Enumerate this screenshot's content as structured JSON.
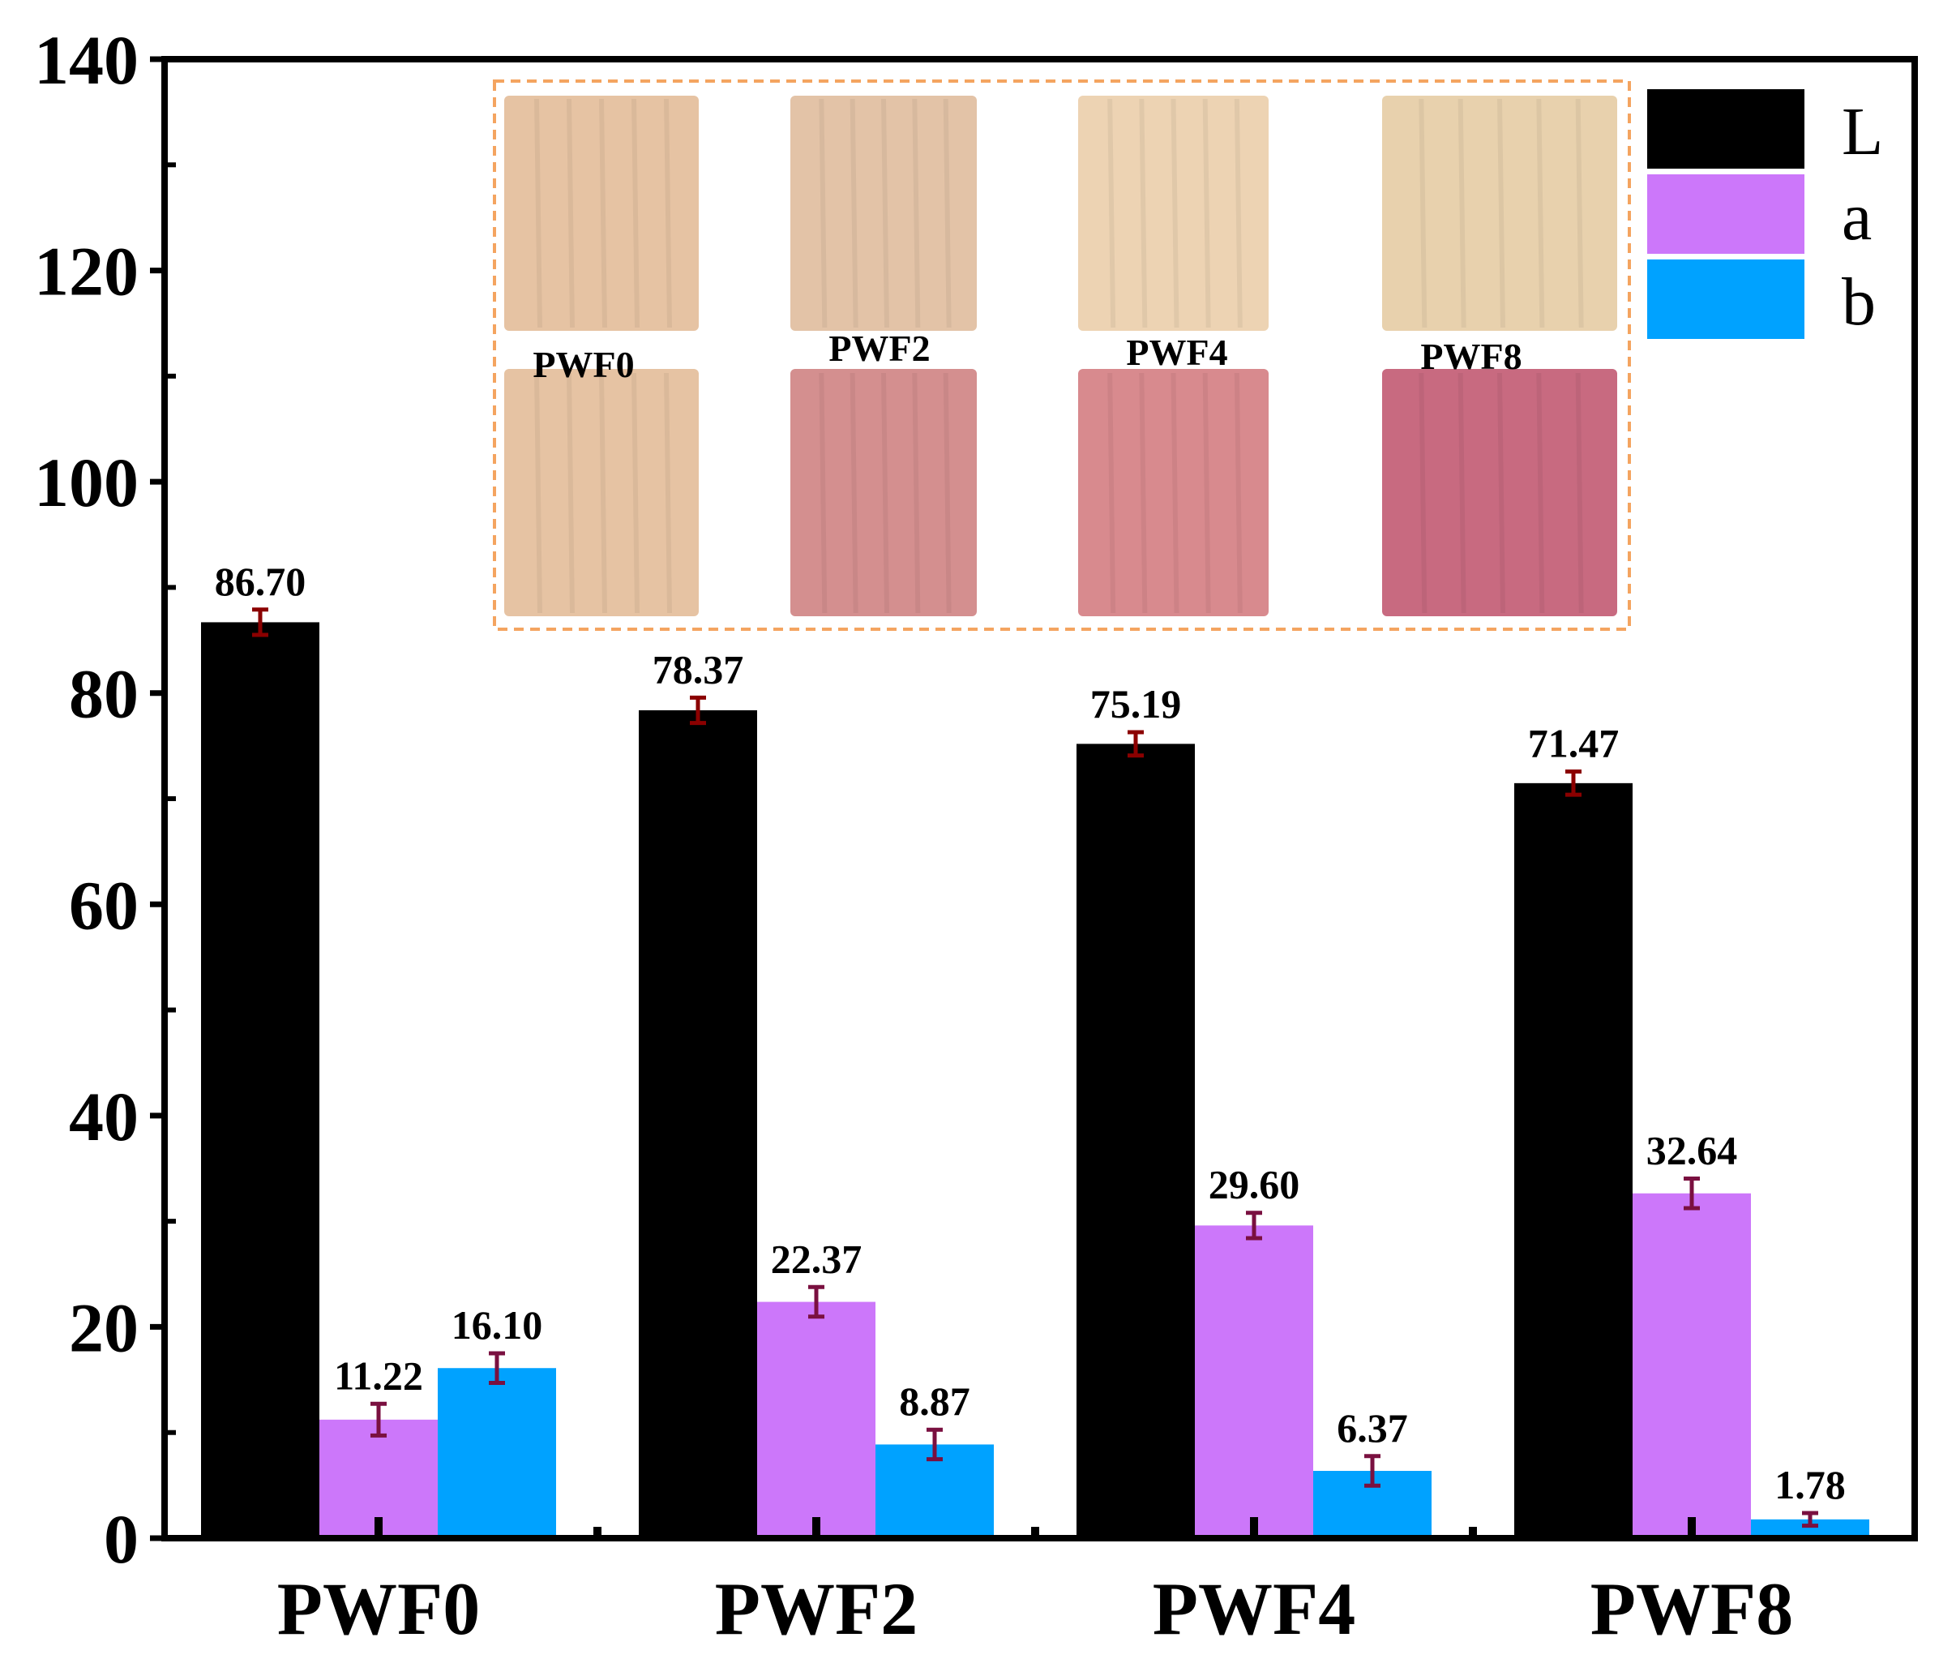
{
  "chart_data": {
    "type": "bar",
    "title": "",
    "xlabel": "",
    "ylabel": "",
    "ylim": [
      0,
      140
    ],
    "yticks": [
      0,
      20,
      40,
      60,
      80,
      100,
      120,
      140
    ],
    "ytick_labels": [
      "0",
      "20",
      "40",
      "60",
      "80",
      "100",
      "120",
      "140"
    ],
    "categories": [
      "PWF0",
      "PWF2",
      "PWF4",
      "PWF8"
    ],
    "series": [
      {
        "name": "L",
        "color": "#000000",
        "values": [
          86.7,
          78.37,
          75.19,
          71.47
        ],
        "labels": [
          "86.70",
          "78.37",
          "75.19",
          "71.47"
        ],
        "errors": [
          1.2,
          1.2,
          1.1,
          1.1
        ]
      },
      {
        "name": "a",
        "color": "#cc77fa",
        "values": [
          11.22,
          22.37,
          29.6,
          32.64
        ],
        "labels": [
          "11.22",
          "22.37",
          "29.60",
          "32.64"
        ],
        "errors": [
          1.5,
          1.4,
          1.2,
          1.4
        ]
      },
      {
        "name": "b",
        "color": "#00a2ff",
        "values": [
          16.1,
          8.87,
          6.37,
          1.78
        ],
        "labels": [
          "16.10",
          "8.87",
          "6.37",
          "1.78"
        ],
        "errors": [
          1.4,
          1.4,
          1.4,
          0.6
        ]
      }
    ],
    "error_bar_colors": [
      "#8b0000",
      "#7a1040",
      "#7a1040"
    ],
    "legend": {
      "position": "top-right",
      "entries": [
        "L",
        "a",
        "b"
      ]
    },
    "inset": {
      "description_labels": [
        "PWF0",
        "PWF2",
        "PWF4",
        "PWF8"
      ],
      "border_color": "#f4a460",
      "top_row_colors": [
        "#e6c3a3",
        "#e3c3a7",
        "#edd3b3",
        "#e8d1ad"
      ],
      "bottom_row_colors": [
        "#e6c3a3",
        "#d48f8f",
        "#d88a8e",
        "#c86a80"
      ]
    }
  }
}
